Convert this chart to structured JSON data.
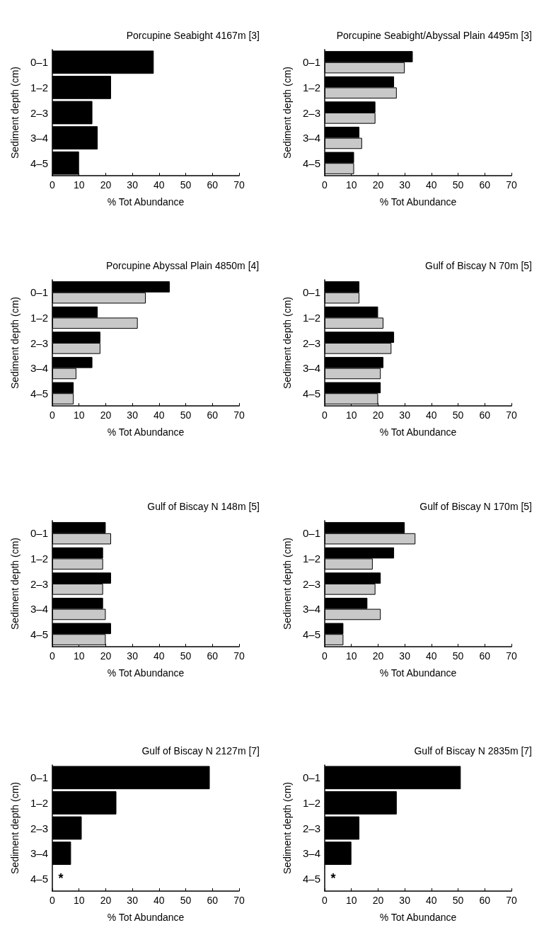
{
  "chart_data": [
    {
      "type": "bar",
      "orientation": "horizontal",
      "title": "Porcupine Seabight 4167m [3]",
      "xlabel": "% Tot Abundance",
      "ylabel": "Sediment depth (cm)",
      "categories": [
        "0–1",
        "1–2",
        "2–3",
        "3–4",
        "4–5"
      ],
      "values": [
        38,
        22,
        15,
        17,
        10
      ],
      "color": "#000000",
      "xlim": [
        0,
        70
      ],
      "xticks": [
        0,
        10,
        20,
        30,
        40,
        50,
        60,
        70
      ]
    },
    {
      "type": "bar",
      "orientation": "horizontal",
      "title": "Porcupine Seabight/Abyssal Plain 4495m [3]",
      "xlabel": "% Tot Abundance",
      "ylabel": "Sediment depth (cm)",
      "categories": [
        "0–1",
        "1–2",
        "2–3",
        "3–4",
        "4–5"
      ],
      "series": [
        {
          "color": "#000000",
          "values": [
            33,
            26,
            19,
            13,
            11
          ]
        },
        {
          "color": "#c8c8c8",
          "values": [
            30,
            27,
            19,
            14,
            11
          ]
        }
      ],
      "xlim": [
        0,
        70
      ],
      "xticks": [
        0,
        10,
        20,
        30,
        40,
        50,
        60,
        70
      ]
    },
    {
      "type": "bar",
      "orientation": "horizontal",
      "title": "Porcupine Abyssal Plain 4850m [4]",
      "xlabel": "% Tot Abundance",
      "ylabel": "Sediment depth (cm)",
      "categories": [
        "0–1",
        "1–2",
        "2–3",
        "3–4",
        "4–5"
      ],
      "series": [
        {
          "color": "#000000",
          "values": [
            44,
            17,
            18,
            15,
            8
          ]
        },
        {
          "color": "#c8c8c8",
          "values": [
            35,
            32,
            18,
            9,
            8
          ]
        }
      ],
      "xlim": [
        0,
        70
      ],
      "xticks": [
        0,
        10,
        20,
        30,
        40,
        50,
        60,
        70
      ]
    },
    {
      "type": "bar",
      "orientation": "horizontal",
      "title": "Gulf of Biscay N 70m [5]",
      "xlabel": "% Tot Abundance",
      "ylabel": "Sediment depth (cm)",
      "categories": [
        "0–1",
        "1–2",
        "2–3",
        "3–4",
        "4–5"
      ],
      "series": [
        {
          "color": "#000000",
          "values": [
            13,
            20,
            26,
            22,
            21
          ]
        },
        {
          "color": "#c8c8c8",
          "values": [
            13,
            22,
            25,
            21,
            20
          ]
        }
      ],
      "xlim": [
        0,
        70
      ],
      "xticks": [
        0,
        10,
        20,
        30,
        40,
        50,
        60,
        70
      ]
    },
    {
      "type": "bar",
      "orientation": "horizontal",
      "title": "Gulf of Biscay N 148m [5]",
      "xlabel": "% Tot Abundance",
      "ylabel": "Sediment depth (cm)",
      "categories": [
        "0–1",
        "1–2",
        "2–3",
        "3–4",
        "4–5"
      ],
      "series": [
        {
          "color": "#000000",
          "values": [
            20,
            19,
            22,
            19,
            22
          ]
        },
        {
          "color": "#c8c8c8",
          "values": [
            22,
            19,
            19,
            20,
            20
          ]
        }
      ],
      "xlim": [
        0,
        70
      ],
      "xticks": [
        0,
        10,
        20,
        30,
        40,
        50,
        60,
        70
      ]
    },
    {
      "type": "bar",
      "orientation": "horizontal",
      "title": "Gulf of Biscay N 170m [5]",
      "xlabel": "% Tot Abundance",
      "ylabel": "Sediment depth (cm)",
      "categories": [
        "0–1",
        "1–2",
        "2–3",
        "3–4",
        "4–5"
      ],
      "series": [
        {
          "color": "#000000",
          "values": [
            30,
            26,
            21,
            16,
            7
          ]
        },
        {
          "color": "#c8c8c8",
          "values": [
            34,
            18,
            19,
            21,
            7
          ]
        }
      ],
      "xlim": [
        0,
        70
      ],
      "xticks": [
        0,
        10,
        20,
        30,
        40,
        50,
        60,
        70
      ]
    },
    {
      "type": "bar",
      "orientation": "horizontal",
      "title": "Gulf of Biscay N 2127m [7]",
      "xlabel": "% Tot Abundance",
      "ylabel": "Sediment depth (cm)",
      "categories": [
        "0–1",
        "1–2",
        "2–3",
        "3–4",
        "4–5"
      ],
      "values": [
        59,
        24,
        11,
        7,
        null
      ],
      "color": "#000000",
      "xlim": [
        0,
        70
      ],
      "xticks": [
        0,
        10,
        20,
        30,
        40,
        50,
        60,
        70
      ],
      "annotations": [
        "*"
      ]
    },
    {
      "type": "bar",
      "orientation": "horizontal",
      "title": "Gulf of Biscay N 2835m [7]",
      "xlabel": "% Tot Abundance",
      "ylabel": "Sediment depth (cm)",
      "categories": [
        "0–1",
        "1–2",
        "2–3",
        "3–4",
        "4–5"
      ],
      "values": [
        51,
        27,
        13,
        10,
        null
      ],
      "color": "#000000",
      "xlim": [
        0,
        70
      ],
      "xticks": [
        0,
        10,
        20,
        30,
        40,
        50,
        60,
        70
      ],
      "annotations": [
        "*"
      ]
    }
  ]
}
